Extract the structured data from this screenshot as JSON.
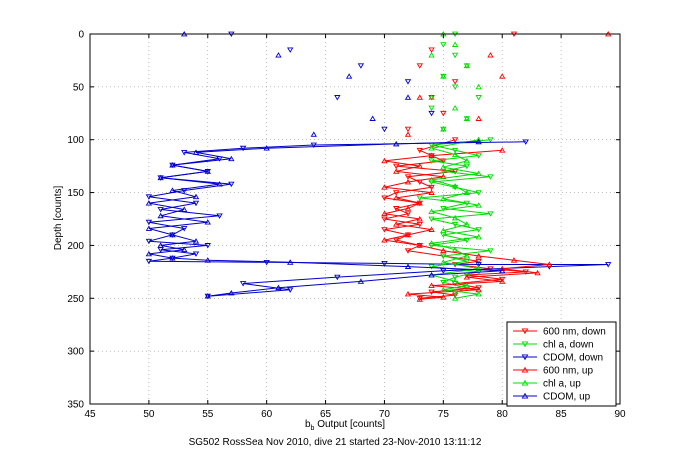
{
  "chart_data": {
    "type": "line",
    "xlabel_main": "b",
    "xlabel_sub": "b",
    "xlabel_rest": " Output [counts]",
    "ylabel": "Depth [counts]",
    "caption": "SG502 RossSea Nov 2010, dive 21 started 23-Nov-2010 13:11:12",
    "xlim": [
      45,
      90
    ],
    "ylim": [
      0,
      350
    ],
    "y_reversed": true,
    "xticks": [
      45,
      50,
      55,
      60,
      65,
      70,
      75,
      80,
      85,
      90
    ],
    "yticks": [
      0,
      50,
      100,
      150,
      200,
      250,
      300,
      350
    ],
    "grid": true,
    "legend_position": "bottom-right",
    "series": [
      {
        "name": "600 nm, down",
        "color": "#ff0000",
        "marker": "down",
        "x": [
          81,
          74,
          73,
          76,
          74,
          75,
          72,
          76,
          73,
          74,
          75,
          71,
          76,
          72,
          73,
          74,
          71,
          70,
          73,
          71,
          72,
          70,
          73,
          70,
          72,
          71,
          73,
          72,
          75,
          78,
          76,
          79,
          82,
          77,
          80,
          76,
          78,
          74,
          76,
          73
        ],
        "y": [
          0,
          15,
          30,
          45,
          60,
          75,
          90,
          100,
          110,
          115,
          120,
          125,
          130,
          135,
          140,
          145,
          150,
          155,
          160,
          165,
          170,
          175,
          180,
          185,
          190,
          195,
          200,
          205,
          210,
          215,
          218,
          222,
          225,
          228,
          232,
          236,
          240,
          244,
          247,
          250
        ]
      },
      {
        "name": "chl a, down",
        "color": "#00dd00",
        "marker": "down",
        "x": [
          76,
          75,
          76,
          77,
          75,
          76,
          78,
          74,
          77,
          75,
          79,
          74,
          76,
          78,
          74,
          77,
          75,
          79,
          74,
          76,
          78,
          73,
          77,
          75,
          79,
          74,
          76,
          78,
          75,
          77,
          74,
          79,
          75,
          77,
          74,
          78,
          76,
          75,
          77,
          76
        ],
        "y": [
          0,
          10,
          20,
          30,
          40,
          50,
          60,
          70,
          80,
          90,
          100,
          105,
          110,
          115,
          120,
          125,
          130,
          135,
          140,
          145,
          150,
          155,
          160,
          165,
          170,
          175,
          180,
          185,
          190,
          195,
          200,
          205,
          210,
          215,
          220,
          225,
          230,
          235,
          240,
          245
        ]
      },
      {
        "name": "CDOM, down",
        "color": "#0000cc",
        "marker": "down",
        "x": [
          57,
          62,
          68,
          72,
          66,
          74,
          70,
          82,
          64,
          58,
          53,
          56,
          52,
          55,
          51,
          57,
          53,
          50,
          54,
          51,
          56,
          50,
          53,
          52,
          50,
          55,
          51,
          54,
          52,
          50,
          60,
          70,
          78,
          89,
          84,
          75,
          66,
          58,
          62,
          55
        ],
        "y": [
          0,
          15,
          30,
          45,
          60,
          75,
          90,
          102,
          105,
          108,
          112,
          118,
          124,
          130,
          136,
          142,
          148,
          154,
          160,
          166,
          172,
          178,
          184,
          190,
          196,
          200,
          204,
          208,
          212,
          215,
          216,
          217,
          218,
          218,
          220,
          224,
          230,
          236,
          242,
          248
        ]
      },
      {
        "name": "600 nm, up",
        "color": "#ff0000",
        "marker": "up",
        "x": [
          89,
          79,
          80,
          73,
          78,
          72,
          80,
          74,
          70,
          73,
          71,
          75,
          72,
          70,
          74,
          71,
          73,
          72,
          70,
          73,
          71,
          74,
          72,
          70,
          73,
          75,
          78,
          81,
          84,
          80,
          83,
          77,
          80,
          74,
          78,
          72,
          75,
          73
        ],
        "y": [
          0,
          20,
          40,
          60,
          80,
          95,
          110,
          115,
          120,
          125,
          130,
          135,
          140,
          145,
          150,
          155,
          160,
          165,
          170,
          175,
          180,
          185,
          190,
          195,
          200,
          205,
          210,
          214,
          218,
          222,
          226,
          230,
          234,
          238,
          242,
          246,
          249,
          251
        ]
      },
      {
        "name": "chl a, up",
        "color": "#00dd00",
        "marker": "up",
        "x": [
          75,
          76,
          74,
          77,
          75,
          78,
          74,
          76,
          77,
          75,
          78,
          74,
          76,
          77,
          75,
          78,
          74,
          76,
          77,
          75,
          78,
          74,
          76,
          77,
          75,
          78,
          74,
          76,
          77,
          75,
          78,
          74,
          76,
          77,
          75,
          78,
          76
        ],
        "y": [
          0,
          10,
          20,
          30,
          40,
          50,
          60,
          70,
          80,
          90,
          100,
          108,
          114,
          120,
          126,
          132,
          138,
          144,
          150,
          156,
          162,
          168,
          174,
          180,
          186,
          192,
          198,
          204,
          210,
          216,
          222,
          228,
          234,
          238,
          242,
          246,
          250
        ]
      },
      {
        "name": "CDOM, up",
        "color": "#0000cc",
        "marker": "up",
        "x": [
          53,
          61,
          67,
          72,
          69,
          64,
          78,
          71,
          60,
          54,
          57,
          52,
          55,
          51,
          56,
          52,
          54,
          50,
          53,
          51,
          55,
          50,
          52,
          54,
          51,
          53,
          50,
          52,
          55,
          62,
          72,
          80,
          74,
          68,
          61,
          57,
          55
        ],
        "y": [
          0,
          20,
          40,
          60,
          80,
          95,
          102,
          104,
          108,
          112,
          118,
          124,
          130,
          136,
          142,
          148,
          154,
          160,
          166,
          172,
          178,
          184,
          190,
          196,
          200,
          204,
          208,
          212,
          214,
          216,
          220,
          224,
          228,
          234,
          240,
          245,
          248
        ]
      }
    ]
  }
}
